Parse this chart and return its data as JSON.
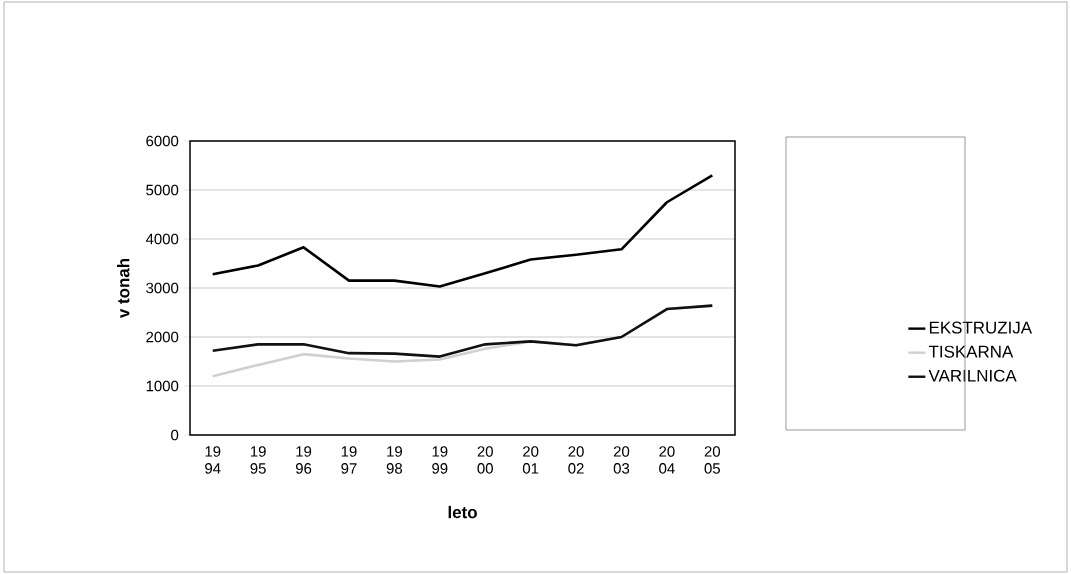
{
  "chart_data": {
    "type": "line",
    "xlabel": "leto",
    "ylabel": "v tonah",
    "categories": [
      "19 94",
      "19 95",
      "19 96",
      "19 97",
      "19 98",
      "19 99",
      "20 00",
      "20 01",
      "20 02",
      "20 03",
      "20 04",
      "20 05"
    ],
    "series": [
      {
        "name": "EKSTRUZIJA",
        "color": "#000000",
        "values": [
          3280,
          3460,
          3830,
          3150,
          3150,
          3030,
          3300,
          3580,
          3680,
          3790,
          4750,
          5300
        ]
      },
      {
        "name": "TISKARNA",
        "color": "#d0d0d0",
        "values": [
          1200,
          1430,
          1650,
          1560,
          1500,
          1540,
          1760,
          1910,
          1830,
          2000,
          2570,
          2640
        ]
      },
      {
        "name": "VARILNICA",
        "color": "#111111",
        "values": [
          1720,
          1850,
          1850,
          1670,
          1660,
          1600,
          1850,
          1910,
          1830,
          2000,
          2570,
          2640
        ]
      }
    ],
    "ylim": [
      0,
      6000
    ],
    "yticks": [
      0,
      1000,
      2000,
      3000,
      4000,
      5000,
      6000
    ],
    "grid": "y",
    "legend": "right",
    "marker": "none",
    "line_style": "solid"
  }
}
